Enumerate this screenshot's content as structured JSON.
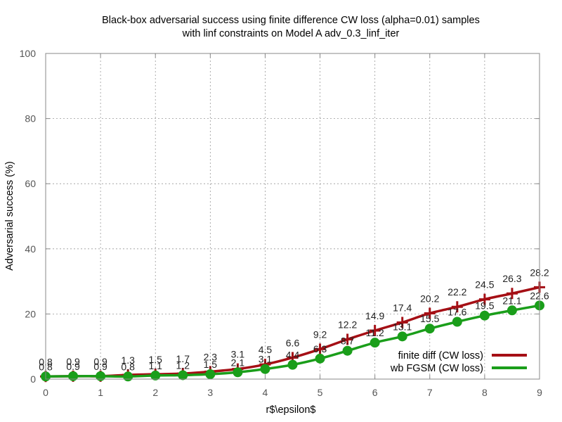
{
  "chart_data": {
    "type": "line",
    "title_lines": [
      "Black-box adversarial success using finite difference CW loss (alpha=0.01) samples",
      "with linf constraints on Model A adv_0.3_linf_iter"
    ],
    "xlabel": "r$\\epsilon$",
    "ylabel": "Adversarial success (%)",
    "xlim": [
      0,
      9
    ],
    "ylim": [
      0,
      100
    ],
    "xticks": [
      "0",
      "1",
      "2",
      "3",
      "4",
      "5",
      "6",
      "7",
      "8",
      "9"
    ],
    "yticks": [
      "0",
      "20",
      "40",
      "60",
      "80",
      "100"
    ],
    "grid": true,
    "legend_position": "bottom-right",
    "x": [
      0,
      0.5,
      1,
      1.5,
      2,
      2.5,
      3,
      3.5,
      4,
      4.5,
      5,
      5.5,
      6,
      6.5,
      7,
      7.5,
      8,
      8.5,
      9
    ],
    "series": [
      {
        "name": "finite diff (CW loss)",
        "color": "#a50f15",
        "marker": "plus",
        "values": [
          0.8,
          0.9,
          0.9,
          1.3,
          1.5,
          1.7,
          2.3,
          3.1,
          4.5,
          6.6,
          9.2,
          12.2,
          14.9,
          17.4,
          20.2,
          22.2,
          24.5,
          26.3,
          28.2
        ],
        "labels": [
          "0.8",
          "0.9",
          "0.9",
          "1.3",
          "1.5",
          "1.7",
          "2.3",
          "3.1",
          "4.5",
          "6.6",
          "9.2",
          "12.2",
          "14.9",
          "17.4",
          "20.2",
          "22.2",
          "24.5",
          "26.3",
          "28.2"
        ]
      },
      {
        "name": "wb FGSM (CW loss)",
        "color": "#1a9e1a",
        "marker": "circle",
        "values": [
          0.8,
          0.9,
          0.9,
          0.8,
          1.1,
          1.2,
          1.5,
          2.1,
          3.1,
          4.4,
          6.3,
          8.7,
          11.2,
          13.1,
          15.5,
          17.6,
          19.5,
          21.1,
          22.6
        ],
        "labels": [
          "0.8",
          "0.9",
          "0.9",
          "0.8",
          "1.1",
          "1.2",
          "1.5",
          "2.1",
          "3.1",
          "4.4",
          "6.3",
          "8.7",
          "11.2",
          "13.1",
          "15.5",
          "17.6",
          "19.5",
          "21.1",
          "22.6"
        ]
      }
    ]
  }
}
